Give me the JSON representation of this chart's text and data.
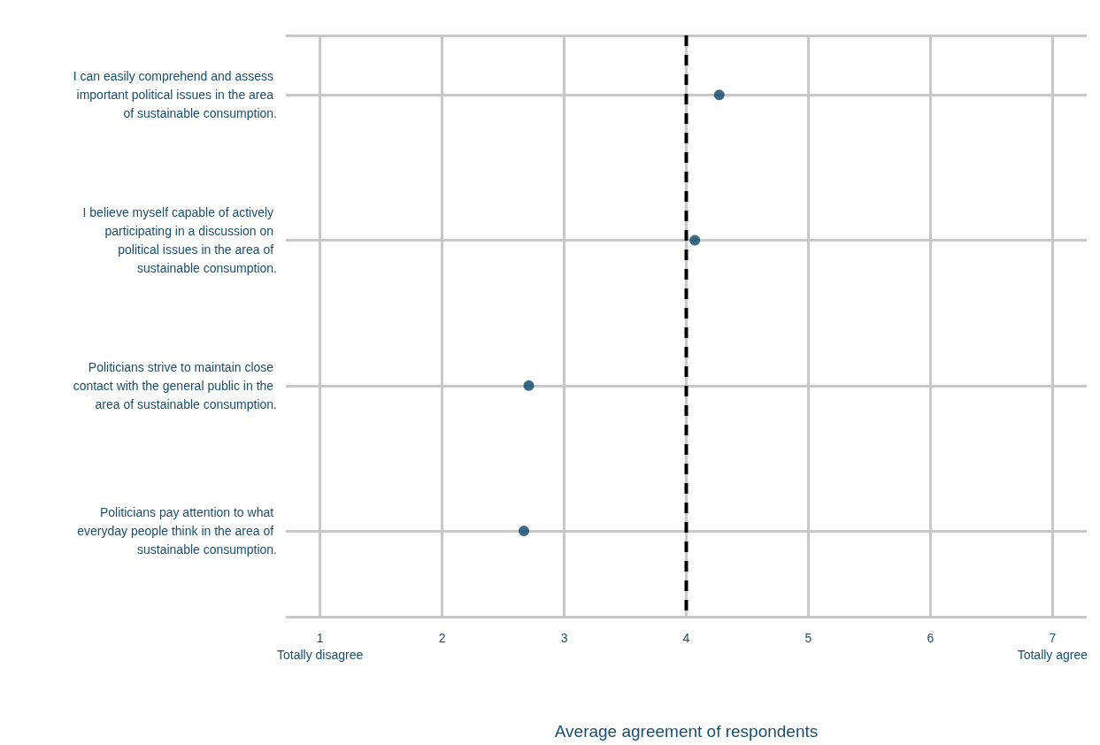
{
  "chart_data": {
    "type": "scatter",
    "orientation": "horizontal",
    "xlabel": "Average agreement of respondents",
    "categories": [
      "I can easily comprehend and assess important political issues in the area of sustainable consumption.",
      "I believe myself capable of actively participating in a discussion on political issues in the area of sustainable consumption.",
      "Politicians strive to maintain close contact with the general public in the area of sustainable consumption.",
      "Politicians pay attention to what everyday people think in the area of sustainable consumption."
    ],
    "values": [
      4.27,
      4.07,
      2.71,
      2.67
    ],
    "color": "#0d4466",
    "marker": "circle",
    "grid": true,
    "xlim": [
      0.72,
      7.28
    ],
    "xticks": [
      {
        "value": 1,
        "label": "1\nTotally disagree"
      },
      2,
      3,
      4,
      5,
      6,
      {
        "value": 7,
        "label": "7\nTotally agree"
      }
    ],
    "ref_lines": [
      {
        "axis": "x",
        "value": 4,
        "color": "#000000",
        "line_style": "dashed"
      }
    ]
  }
}
